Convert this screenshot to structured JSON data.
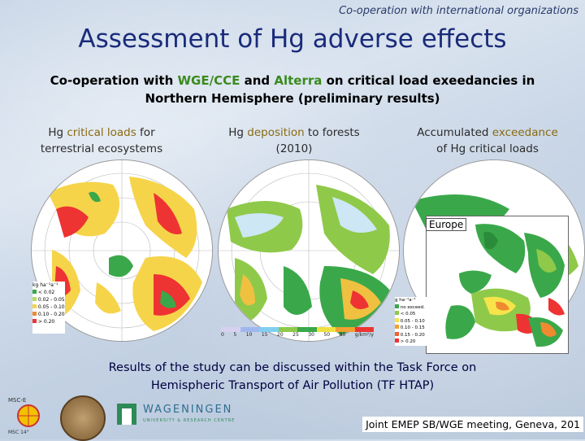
{
  "header": {
    "top_note": "Co-operation with international organizations",
    "title": "Assessment of Hg adverse effects",
    "subtitle_parts": [
      "Co-operation with ",
      "WGE/CCE",
      " and ",
      "Alterra",
      " on critical load exeedancies in"
    ],
    "subtitle_line2": "Northern Hemisphere (preliminary results)"
  },
  "panels": [
    {
      "caption_parts": [
        "Hg ",
        "critical loads",
        " for"
      ],
      "caption_line2": "terrestrial ecosystems",
      "legend_unit": "kg ha⁻¹a⁻¹",
      "legend_items": [
        "< 0.02",
        "0.02 - 0.05",
        "0.05 - 0.10",
        "0.10 - 0.20",
        "> 0.20"
      ]
    },
    {
      "caption_parts": [
        "Hg ",
        "deposition",
        " to forests"
      ],
      "caption_line2": "(2010)",
      "scale_ticks": [
        "0",
        "5",
        "10",
        "15",
        "20",
        "25",
        "30",
        "50",
        "80"
      ],
      "scale_unit": "g/km²/y"
    },
    {
      "caption_parts": [
        "Accumulated ",
        "exceedance"
      ],
      "caption_line2": "of Hg critical loads",
      "inset_label": "Europe",
      "legend_unit": "g ha⁻¹a⁻¹",
      "legend_items": [
        "no exceed.",
        "< 0.05",
        "0.05 - 0.10",
        "0.10 - 0.15",
        "0.15 - 0.20",
        "> 0.20"
      ]
    }
  ],
  "bottom": {
    "line1": "Results of the study can be discussed within the Task Force on",
    "line2": "Hemispheric Transport of Air Pollution (TF HTAP)"
  },
  "logos": {
    "msce_top": "MSC-E",
    "msce_bottom": "MSC 14°",
    "wageningen": "WAGENINGEN",
    "wageningen_sub": "UNIVERSITY & RESEARCH CENTRE"
  },
  "footer": "Joint EMEP SB/WGE meeting, Geneva, 201"
}
